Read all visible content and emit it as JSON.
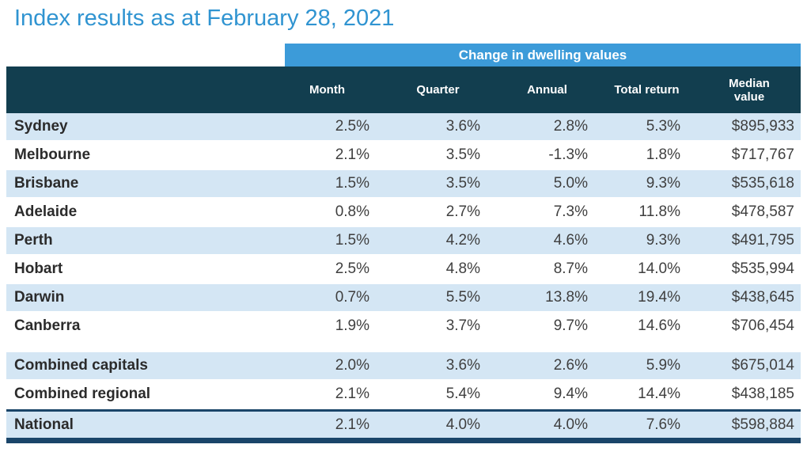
{
  "title": "Index results as at February 28, 2021",
  "table": {
    "band_label": "Change in dwelling values",
    "columns": {
      "month": "Month",
      "quarter": "Quarter",
      "annual": "Annual",
      "total_return": "Total return",
      "median_value": "Median value"
    },
    "rows": [
      {
        "label": "Sydney",
        "cells": [
          "2.5%",
          "3.6%",
          "2.8%",
          "5.3%",
          "$895,933"
        ]
      },
      {
        "label": "Melbourne",
        "cells": [
          "2.1%",
          "3.5%",
          "-1.3%",
          "1.8%",
          "$717,767"
        ]
      },
      {
        "label": "Brisbane",
        "cells": [
          "1.5%",
          "3.5%",
          "5.0%",
          "9.3%",
          "$535,618"
        ]
      },
      {
        "label": "Adelaide",
        "cells": [
          "0.8%",
          "2.7%",
          "7.3%",
          "11.8%",
          "$478,587"
        ]
      },
      {
        "label": "Perth",
        "cells": [
          "1.5%",
          "4.2%",
          "4.6%",
          "9.3%",
          "$491,795"
        ]
      },
      {
        "label": "Hobart",
        "cells": [
          "2.5%",
          "4.8%",
          "8.7%",
          "14.0%",
          "$535,994"
        ]
      },
      {
        "label": "Darwin",
        "cells": [
          "0.7%",
          "5.5%",
          "13.8%",
          "19.4%",
          "$438,645"
        ]
      },
      {
        "label": "Canberra",
        "cells": [
          "1.9%",
          "3.7%",
          "9.7%",
          "14.6%",
          "$706,454"
        ]
      }
    ],
    "summary_rows": [
      {
        "label": "Combined capitals",
        "cells": [
          "2.0%",
          "3.6%",
          "2.6%",
          "5.9%",
          "$675,014"
        ]
      },
      {
        "label": "Combined regional",
        "cells": [
          "2.1%",
          "5.4%",
          "9.4%",
          "14.4%",
          "$438,185"
        ]
      }
    ],
    "national_row": {
      "label": "National",
      "cells": [
        "2.1%",
        "4.0%",
        "4.0%",
        "7.6%",
        "$598,884"
      ]
    }
  },
  "colors": {
    "title_blue": "#3094D1",
    "band_blue": "#3C9BD9",
    "header_navy": "#123E4F",
    "stripe_blue": "#D4E6F4",
    "rule_navy": "#1A4569",
    "header_text": "#FFFFFF",
    "label_text": "#2B2B2B",
    "value_text": "#3F3F3F"
  }
}
